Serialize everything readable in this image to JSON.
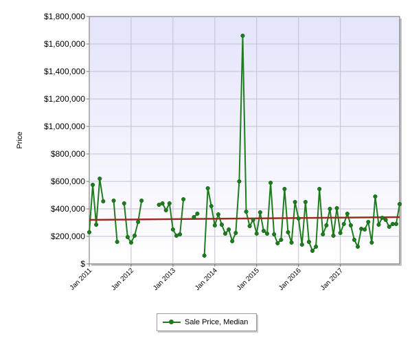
{
  "chart_data": {
    "type": "line",
    "ylabel": "Price",
    "ylim": [
      0,
      1800000
    ],
    "y_ticks": [
      "$1,800,000",
      "$1,600,000",
      "$1,400,000",
      "$1,200,000",
      "$1,000,000",
      "$800,000",
      "$600,000",
      "$400,000",
      "$200,000",
      "$"
    ],
    "x_ticks": [
      "Jan 2011",
      "Jan 2012",
      "Jan 2013",
      "Jan 2014",
      "Jan 2015",
      "Jan 2016",
      "Jan 2017"
    ],
    "x_start": "2011-01",
    "grid": true,
    "legend_position": "bottom",
    "series": [
      {
        "name": "Sale Price, Median",
        "color": "#1e7b1e",
        "values": [
          230000,
          575000,
          285000,
          620000,
          455000,
          null,
          null,
          460000,
          160000,
          null,
          440000,
          195000,
          155000,
          205000,
          305000,
          460000,
          null,
          null,
          null,
          null,
          430000,
          440000,
          390000,
          440000,
          250000,
          205000,
          215000,
          470000,
          null,
          null,
          340000,
          365000,
          null,
          60000,
          550000,
          420000,
          280000,
          360000,
          285000,
          220000,
          250000,
          165000,
          225000,
          600000,
          1660000,
          380000,
          275000,
          320000,
          220000,
          375000,
          240000,
          220000,
          590000,
          215000,
          150000,
          175000,
          545000,
          230000,
          155000,
          450000,
          330000,
          140000,
          450000,
          160000,
          95000,
          125000,
          545000,
          215000,
          280000,
          400000,
          205000,
          405000,
          225000,
          290000,
          365000,
          280000,
          175000,
          125000,
          255000,
          250000,
          305000,
          155000,
          490000,
          285000,
          335000,
          320000,
          270000,
          290000,
          290000,
          435000
        ]
      },
      {
        "name": "trend",
        "color": "#9b2d1f",
        "values": [
          320000,
          340000
        ]
      }
    ]
  },
  "legend": {
    "label": "Sale Price, Median"
  }
}
